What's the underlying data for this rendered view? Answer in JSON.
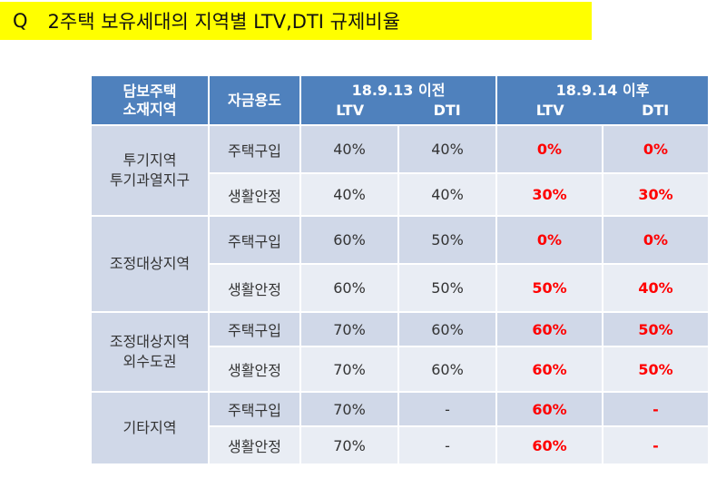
{
  "title": {
    "q": "Q",
    "text": "2주택 보유세대의 지역별 LTV,DTI 규제비율"
  },
  "header": {
    "region": [
      "담보주택",
      "소재지역"
    ],
    "purpose": "자금용도",
    "before": {
      "period": "18.9.13 이전",
      "ltv": "LTV",
      "dti": "DTI"
    },
    "after": {
      "period": "18.9.14 이후",
      "ltv": "LTV",
      "dti": "DTI"
    }
  },
  "groups": [
    {
      "region": [
        "투기지역",
        "투기과열지구"
      ],
      "rows": [
        {
          "purpose": "주택구입",
          "before_ltv": "40%",
          "before_dti": "40%",
          "after_ltv": "0%",
          "after_dti": "0%"
        },
        {
          "purpose": "생활안정",
          "before_ltv": "40%",
          "before_dti": "40%",
          "after_ltv": "30%",
          "after_dti": "30%"
        }
      ]
    },
    {
      "region": [
        "조정대상지역"
      ],
      "rows": [
        {
          "purpose": "주택구입",
          "before_ltv": "60%",
          "before_dti": "50%",
          "after_ltv": "0%",
          "after_dti": "0%"
        },
        {
          "purpose": "생활안정",
          "before_ltv": "60%",
          "before_dti": "50%",
          "after_ltv": "50%",
          "after_dti": "40%"
        }
      ]
    },
    {
      "region": [
        "조정대상지역",
        "외수도권"
      ],
      "rows": [
        {
          "purpose": "주택구입",
          "before_ltv": "70%",
          "before_dti": "60%",
          "after_ltv": "60%",
          "after_dti": "50%"
        },
        {
          "purpose": "생활안정",
          "before_ltv": "70%",
          "before_dti": "60%",
          "after_ltv": "60%",
          "after_dti": "50%"
        }
      ]
    },
    {
      "region": [
        "기타지역"
      ],
      "rows": [
        {
          "purpose": "주택구입",
          "before_ltv": "70%",
          "before_dti": "-",
          "after_ltv": "60%",
          "after_dti": "-"
        },
        {
          "purpose": "생활안정",
          "before_ltv": "70%",
          "before_dti": "-",
          "after_ltv": "60%",
          "after_dti": "-"
        }
      ]
    }
  ],
  "colors": {
    "header_bg": "#4f81bd",
    "band_dark": "#d0d8e8",
    "band_light": "#e9edf4",
    "highlight": "#ff0000",
    "title_bg": "#ffff00"
  }
}
